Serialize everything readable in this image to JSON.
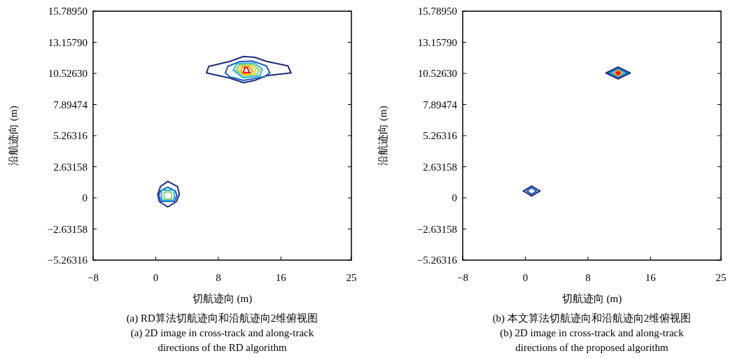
{
  "chart_data": [
    {
      "type": "line",
      "xlabel": "切航迹向 (m)",
      "ylabel": "沿航迹向 (m)",
      "xlim": [
        -8,
        25
      ],
      "xticks": [
        -8,
        0,
        8,
        16,
        25
      ],
      "ylim": [
        -5.26316,
        15.7895
      ],
      "yticks": [
        -5.26316,
        -2.63158,
        0,
        2.63158,
        5.26316,
        7.89474,
        {
          "value": 10.5263,
          "label": "10.52630"
        },
        {
          "value": 13.1579,
          "label": "13.15790"
        },
        {
          "value": 15.7895,
          "label": "15.78950"
        }
      ],
      "annotations": [
        "(a) RD算法切航迹向和沿航迹向2维俯视图",
        "(a) 2D image in cross-track and along-track directions of the RD algorithm"
      ],
      "series": [
        {
          "color": "#1c2b7a",
          "x": [
            6.49,
            6.77,
            9.48,
            11.22,
            12.68,
            14.14,
            16.9,
            17.28
          ],
          "values": [
            10.57,
            11.12,
            11.55,
            11.96,
            11.89,
            11.55,
            11.16,
            10.57
          ]
        },
        {
          "color": "#1c2b7a",
          "x": [
            6.49,
            9.48,
            11.22,
            12.68,
            14.14,
            17.28
          ],
          "values": [
            10.57,
            10.13,
            9.74,
            9.94,
            10.33,
            10.57
          ]
        },
        {
          "color": "#1f5cb5",
          "x": [
            8.9,
            9.19,
            10.65,
            12.39,
            14.14,
            14.57
          ],
          "values": [
            10.57,
            11.12,
            11.51,
            11.57,
            11.16,
            10.57
          ]
        },
        {
          "color": "#1f5cb5",
          "x": [
            8.9,
            9.48,
            11.22,
            13.84,
            14.57
          ],
          "values": [
            10.57,
            10.23,
            9.94,
            10.23,
            10.57
          ]
        },
        {
          "color": "#2ab4e2",
          "x": [
            9.9,
            10.4,
            12.6,
            13.6
          ],
          "values": [
            10.8,
            11.35,
            11.4,
            10.9
          ]
        },
        {
          "color": "#2ab4e2",
          "x": [
            9.9,
            11.2,
            13.3,
            13.6
          ],
          "values": [
            10.8,
            10.15,
            10.3,
            10.9
          ]
        },
        {
          "color": "#86cf6a",
          "x": [
            10.3,
            10.7,
            12.4,
            13.2
          ],
          "values": [
            10.8,
            11.25,
            11.3,
            10.85
          ]
        },
        {
          "color": "#86cf6a",
          "x": [
            10.3,
            11.2,
            12.9,
            13.2
          ],
          "values": [
            10.8,
            10.3,
            10.4,
            10.85
          ]
        },
        {
          "color": "#e6dc22",
          "x": [
            10.6,
            10.9,
            12.2,
            12.8
          ],
          "values": [
            10.8,
            11.15,
            11.2,
            10.8
          ]
        },
        {
          "color": "#e6dc22",
          "x": [
            10.6,
            11.2,
            12.5,
            12.8
          ],
          "values": [
            10.8,
            10.4,
            10.5,
            10.8
          ]
        },
        {
          "color": "#f59a1e",
          "x": [
            10.9,
            11.1,
            11.9,
            12.4
          ],
          "values": [
            10.75,
            11.1,
            11.1,
            10.75
          ]
        },
        {
          "color": "#f59a1e",
          "x": [
            10.9,
            11.2,
            12.1,
            12.4
          ],
          "values": [
            10.75,
            10.5,
            10.55,
            10.75
          ]
        },
        {
          "color": "#e81818",
          "x": [
            11.2,
            11.4,
            11.7,
            12.0
          ],
          "values": [
            10.6,
            11.05,
            11.0,
            10.6
          ]
        },
        {
          "color": "#e81818",
          "x": [
            11.2,
            12.0
          ],
          "values": [
            10.6,
            10.6
          ]
        },
        {
          "color": "#1c2b7a",
          "x": [
            0.26,
            0.61,
            1.54,
            2.79,
            3.02
          ],
          "values": [
            0.31,
            0.96,
            1.4,
            0.96,
            0.31
          ]
        },
        {
          "color": "#1c2b7a",
          "x": [
            0.26,
            0.46,
            1.54,
            2.65,
            3.02
          ],
          "values": [
            0.31,
            -0.31,
            -0.77,
            -0.31,
            0.31
          ]
        },
        {
          "color": "#1f5cb5",
          "x": [
            0.4,
            0.6,
            1.54,
            2.5,
            2.7
          ],
          "values": [
            0.2,
            0.6,
            0.9,
            0.6,
            0.2
          ]
        },
        {
          "color": "#1f5cb5",
          "x": [
            0.4,
            0.7,
            2.4,
            2.7
          ],
          "values": [
            0.2,
            -0.3,
            -0.3,
            0.2
          ]
        },
        {
          "color": "#2ab4e2",
          "x": [
            0.7,
            0.8,
            2.3,
            2.4
          ],
          "values": [
            0.1,
            0.65,
            0.65,
            0.1
          ]
        },
        {
          "color": "#2ab4e2",
          "x": [
            0.7,
            0.9,
            2.2,
            2.4
          ],
          "values": [
            0.1,
            -0.2,
            -0.2,
            0.1
          ]
        },
        {
          "color": "#86cf6a",
          "x": [
            1.05,
            1.15,
            1.95,
            2.05
          ],
          "values": [
            0.27,
            0.5,
            0.5,
            0.27
          ]
        },
        {
          "color": "#86cf6a",
          "x": [
            1.05,
            1.15,
            1.95,
            2.05
          ],
          "values": [
            0.13,
            -0.1,
            -0.1,
            0.13
          ]
        }
      ]
    },
    {
      "type": "line",
      "xlabel": "切航迹向 (m)",
      "ylabel": "沿航迹向 (m)",
      "xlim": [
        -8,
        25
      ],
      "xticks": [
        -8,
        0,
        8,
        16,
        25
      ],
      "ylim": [
        -5.26316,
        15.7895
      ],
      "yticks": [
        -5.26316,
        -2.63158,
        0,
        2.63158,
        5.26316,
        7.89474,
        {
          "value": 10.5263,
          "label": "10.52630"
        },
        {
          "value": 13.1579,
          "label": "13.15790"
        },
        {
          "value": 15.7895,
          "label": "15.78950"
        }
      ],
      "annotations": [
        "(b) 本文算法切航迹向和沿航迹向2维俯视图",
        "(b) 2D image in cross-track and along-track directions of the proposed algorithm"
      ],
      "series": [
        {
          "color": "#1c2b7a",
          "x": [
            10.3,
            11.85,
            13.4
          ],
          "values": [
            10.56,
            11.06,
            10.56
          ]
        },
        {
          "color": "#1c2b7a",
          "x": [
            10.3,
            11.85,
            13.4
          ],
          "values": [
            10.56,
            10.06,
            10.56
          ]
        },
        {
          "color": "#1f5cb5",
          "x": [
            10.65,
            11.85,
            13.05
          ],
          "values": [
            10.56,
            10.94,
            10.56
          ]
        },
        {
          "color": "#1f5cb5",
          "x": [
            10.65,
            11.85,
            13.05
          ],
          "values": [
            10.56,
            10.18,
            10.56
          ]
        },
        {
          "color": "#2ab4e2",
          "x": [
            10.95,
            11.85,
            12.75
          ],
          "values": [
            10.56,
            10.84,
            10.56
          ]
        },
        {
          "color": "#2ab4e2",
          "x": [
            10.95,
            11.85,
            12.75
          ],
          "values": [
            10.56,
            10.28,
            10.56
          ]
        },
        {
          "type": "scatter",
          "marker": "diamond",
          "color": "#e81818",
          "x": [
            11.85
          ],
          "values": [
            10.56
          ]
        },
        {
          "color": "#1c2b7a",
          "x": [
            -0.24,
            0.81,
            1.86
          ],
          "values": [
            0.58,
            1.0,
            0.58
          ]
        },
        {
          "color": "#1c2b7a",
          "x": [
            -0.24,
            0.81,
            1.86
          ],
          "values": [
            0.58,
            0.16,
            0.58
          ]
        },
        {
          "color": "#1f5cb5",
          "x": [
            0.21,
            0.81,
            1.41
          ],
          "values": [
            0.58,
            0.86,
            0.58
          ]
        },
        {
          "color": "#1f5cb5",
          "x": [
            0.21,
            0.81,
            1.41
          ],
          "values": [
            0.58,
            0.3,
            0.58
          ]
        }
      ]
    }
  ]
}
